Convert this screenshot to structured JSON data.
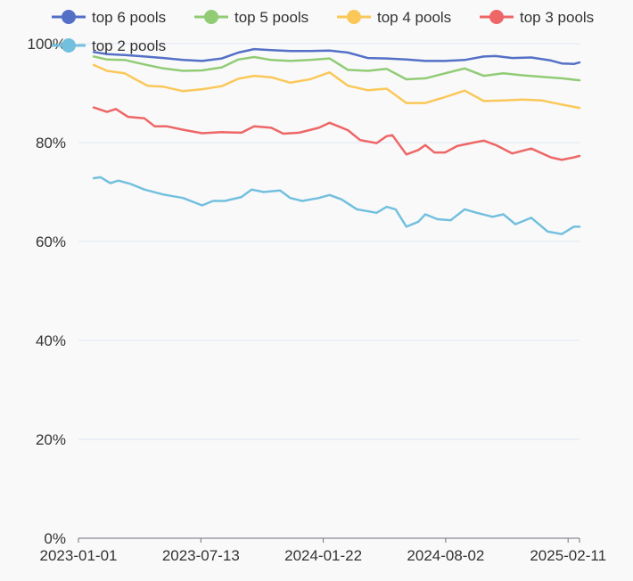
{
  "chart_data": {
    "type": "line",
    "title": "",
    "xlabel": "",
    "ylabel": "",
    "ylim": [
      0,
      100
    ],
    "y_ticks": [
      0,
      20,
      40,
      60,
      80,
      100
    ],
    "y_tick_format": "percent",
    "x_range": [
      "2023-01-01",
      "2025-03-01"
    ],
    "x_ticks": [
      "2023-01-01",
      "2023-07-13",
      "2024-01-22",
      "2024-08-02",
      "2025-02-11"
    ],
    "grid": "horizontal",
    "legend_position": "top",
    "series": [
      {
        "name": "top 6 pools",
        "color": "#5470c6",
        "points": [
          [
            "2023-01-25",
            98.3
          ],
          [
            "2023-02-15",
            97.9
          ],
          [
            "2023-03-15",
            97.7
          ],
          [
            "2023-04-15",
            97.4
          ],
          [
            "2023-05-15",
            97.1
          ],
          [
            "2023-06-15",
            96.7
          ],
          [
            "2023-07-15",
            96.5
          ],
          [
            "2023-08-15",
            97.0
          ],
          [
            "2023-09-10",
            98.2
          ],
          [
            "2023-10-05",
            98.9
          ],
          [
            "2023-11-01",
            98.7
          ],
          [
            "2023-12-01",
            98.5
          ],
          [
            "2024-01-01",
            98.5
          ],
          [
            "2024-02-01",
            98.6
          ],
          [
            "2024-03-01",
            98.2
          ],
          [
            "2024-04-01",
            97.1
          ],
          [
            "2024-05-01",
            97.0
          ],
          [
            "2024-06-01",
            96.8
          ],
          [
            "2024-07-01",
            96.5
          ],
          [
            "2024-08-01",
            96.5
          ],
          [
            "2024-09-01",
            96.7
          ],
          [
            "2024-10-01",
            97.4
          ],
          [
            "2024-10-20",
            97.5
          ],
          [
            "2024-11-15",
            97.1
          ],
          [
            "2024-12-15",
            97.2
          ],
          [
            "2025-01-15",
            96.6
          ],
          [
            "2025-02-01",
            96.0
          ],
          [
            "2025-02-20",
            95.9
          ],
          [
            "2025-03-01",
            96.2
          ]
        ]
      },
      {
        "name": "top 5 pools",
        "color": "#91cc75",
        "points": [
          [
            "2023-01-25",
            97.4
          ],
          [
            "2023-02-15",
            96.8
          ],
          [
            "2023-03-15",
            96.7
          ],
          [
            "2023-04-15",
            95.8
          ],
          [
            "2023-05-15",
            95.0
          ],
          [
            "2023-06-15",
            94.5
          ],
          [
            "2023-07-15",
            94.6
          ],
          [
            "2023-08-15",
            95.2
          ],
          [
            "2023-09-10",
            96.8
          ],
          [
            "2023-10-05",
            97.3
          ],
          [
            "2023-11-01",
            96.7
          ],
          [
            "2023-12-01",
            96.5
          ],
          [
            "2024-01-01",
            96.7
          ],
          [
            "2024-02-01",
            97.0
          ],
          [
            "2024-03-01",
            94.7
          ],
          [
            "2024-04-01",
            94.5
          ],
          [
            "2024-05-01",
            94.9
          ],
          [
            "2024-06-01",
            92.8
          ],
          [
            "2024-07-01",
            93.0
          ],
          [
            "2024-08-01",
            94.0
          ],
          [
            "2024-09-01",
            95.0
          ],
          [
            "2024-10-01",
            93.5
          ],
          [
            "2024-11-01",
            94.0
          ],
          [
            "2024-12-01",
            93.6
          ],
          [
            "2025-01-01",
            93.3
          ],
          [
            "2025-02-01",
            93.0
          ],
          [
            "2025-03-01",
            92.6
          ]
        ]
      },
      {
        "name": "top 4 pools",
        "color": "#fac858",
        "points": [
          [
            "2023-01-25",
            95.7
          ],
          [
            "2023-02-15",
            94.5
          ],
          [
            "2023-03-15",
            94.0
          ],
          [
            "2023-04-01",
            92.8
          ],
          [
            "2023-04-20",
            91.5
          ],
          [
            "2023-05-15",
            91.3
          ],
          [
            "2023-06-15",
            90.4
          ],
          [
            "2023-07-15",
            90.8
          ],
          [
            "2023-08-15",
            91.4
          ],
          [
            "2023-09-10",
            92.9
          ],
          [
            "2023-10-05",
            93.5
          ],
          [
            "2023-11-01",
            93.2
          ],
          [
            "2023-12-01",
            92.1
          ],
          [
            "2024-01-01",
            92.8
          ],
          [
            "2024-02-01",
            94.2
          ],
          [
            "2024-03-01",
            91.5
          ],
          [
            "2024-04-01",
            90.6
          ],
          [
            "2024-05-01",
            90.9
          ],
          [
            "2024-06-01",
            88.0
          ],
          [
            "2024-07-01",
            88.0
          ],
          [
            "2024-08-01",
            89.2
          ],
          [
            "2024-09-01",
            90.5
          ],
          [
            "2024-10-01",
            88.4
          ],
          [
            "2024-11-01",
            88.5
          ],
          [
            "2024-12-01",
            88.7
          ],
          [
            "2025-01-01",
            88.5
          ],
          [
            "2025-02-01",
            87.7
          ],
          [
            "2025-03-01",
            87.0
          ]
        ]
      },
      {
        "name": "top 3 pools",
        "color": "#ee6666",
        "points": [
          [
            "2023-01-25",
            87.1
          ],
          [
            "2023-02-15",
            86.2
          ],
          [
            "2023-03-01",
            86.8
          ],
          [
            "2023-03-20",
            85.2
          ],
          [
            "2023-04-15",
            84.9
          ],
          [
            "2023-05-01",
            83.3
          ],
          [
            "2023-05-20",
            83.3
          ],
          [
            "2023-06-15",
            82.6
          ],
          [
            "2023-07-15",
            81.9
          ],
          [
            "2023-08-15",
            82.1
          ],
          [
            "2023-09-15",
            82.0
          ],
          [
            "2023-10-05",
            83.3
          ],
          [
            "2023-11-01",
            83.0
          ],
          [
            "2023-11-20",
            81.8
          ],
          [
            "2023-12-15",
            82.0
          ],
          [
            "2024-01-15",
            83.0
          ],
          [
            "2024-02-01",
            84.0
          ],
          [
            "2024-03-01",
            82.5
          ],
          [
            "2024-03-20",
            80.5
          ],
          [
            "2024-04-15",
            79.9
          ],
          [
            "2024-05-01",
            81.3
          ],
          [
            "2024-05-10",
            81.5
          ],
          [
            "2024-06-01",
            77.6
          ],
          [
            "2024-06-20",
            78.5
          ],
          [
            "2024-07-01",
            79.5
          ],
          [
            "2024-07-15",
            78.0
          ],
          [
            "2024-08-01",
            78.0
          ],
          [
            "2024-08-20",
            79.3
          ],
          [
            "2024-09-15",
            80.0
          ],
          [
            "2024-10-01",
            80.4
          ],
          [
            "2024-10-20",
            79.5
          ],
          [
            "2024-11-15",
            77.8
          ],
          [
            "2024-12-15",
            78.8
          ],
          [
            "2025-01-15",
            77.0
          ],
          [
            "2025-02-01",
            76.5
          ],
          [
            "2025-02-20",
            77.0
          ],
          [
            "2025-03-01",
            77.3
          ]
        ]
      },
      {
        "name": "top 2 pools",
        "color": "#73c0de",
        "points": [
          [
            "2023-01-25",
            72.8
          ],
          [
            "2023-02-05",
            73.0
          ],
          [
            "2023-02-20",
            71.8
          ],
          [
            "2023-03-05",
            72.3
          ],
          [
            "2023-03-25",
            71.6
          ],
          [
            "2023-04-15",
            70.5
          ],
          [
            "2023-05-15",
            69.5
          ],
          [
            "2023-06-15",
            68.8
          ],
          [
            "2023-07-15",
            67.3
          ],
          [
            "2023-08-01",
            68.2
          ],
          [
            "2023-08-20",
            68.2
          ],
          [
            "2023-09-15",
            69.0
          ],
          [
            "2023-10-01",
            70.5
          ],
          [
            "2023-10-20",
            70.0
          ],
          [
            "2023-11-15",
            70.3
          ],
          [
            "2023-12-01",
            68.8
          ],
          [
            "2023-12-20",
            68.2
          ],
          [
            "2024-01-15",
            68.8
          ],
          [
            "2024-02-01",
            69.4
          ],
          [
            "2024-02-20",
            68.5
          ],
          [
            "2024-03-15",
            66.5
          ],
          [
            "2024-04-15",
            65.8
          ],
          [
            "2024-05-01",
            67.0
          ],
          [
            "2024-05-15",
            66.5
          ],
          [
            "2024-06-01",
            63.0
          ],
          [
            "2024-06-20",
            64.0
          ],
          [
            "2024-07-01",
            65.5
          ],
          [
            "2024-07-20",
            64.5
          ],
          [
            "2024-08-10",
            64.3
          ],
          [
            "2024-09-01",
            66.5
          ],
          [
            "2024-09-20",
            65.8
          ],
          [
            "2024-10-15",
            65.0
          ],
          [
            "2024-11-01",
            65.5
          ],
          [
            "2024-11-20",
            63.5
          ],
          [
            "2024-12-15",
            64.8
          ],
          [
            "2025-01-10",
            62.0
          ],
          [
            "2025-02-01",
            61.5
          ],
          [
            "2025-02-20",
            63.0
          ],
          [
            "2025-03-01",
            63.0
          ]
        ]
      }
    ]
  }
}
